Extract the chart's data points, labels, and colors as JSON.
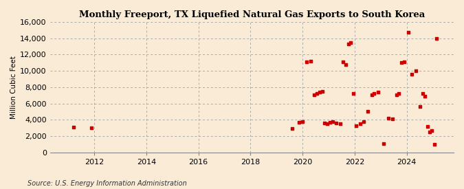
{
  "title": "Monthly Freeport, TX Liquefied Natural Gas Exports to South Korea",
  "ylabel": "Million Cubic Feet",
  "source": "Source: U.S. Energy Information Administration",
  "background_color": "#faebd7",
  "marker_color": "#cc0000",
  "ylim": [
    0,
    16000
  ],
  "yticks": [
    0,
    2000,
    4000,
    6000,
    8000,
    10000,
    12000,
    14000,
    16000
  ],
  "xlim_min": 2010.3,
  "xlim_max": 2025.8,
  "xticks": [
    2012,
    2014,
    2016,
    2018,
    2020,
    2022,
    2024
  ],
  "data_points": [
    [
      2011.2,
      3100
    ],
    [
      2011.9,
      3000
    ],
    [
      2019.6,
      2900
    ],
    [
      2019.85,
      3700
    ],
    [
      2020.0,
      3800
    ],
    [
      2020.15,
      11100
    ],
    [
      2020.3,
      11200
    ],
    [
      2020.45,
      7100
    ],
    [
      2020.55,
      7250
    ],
    [
      2020.65,
      7400
    ],
    [
      2020.75,
      7500
    ],
    [
      2020.85,
      3600
    ],
    [
      2020.95,
      3500
    ],
    [
      2021.05,
      3700
    ],
    [
      2021.15,
      3800
    ],
    [
      2021.3,
      3600
    ],
    [
      2021.45,
      3500
    ],
    [
      2021.55,
      11100
    ],
    [
      2021.65,
      10800
    ],
    [
      2021.75,
      13300
    ],
    [
      2021.85,
      13500
    ],
    [
      2021.95,
      7200
    ],
    [
      2022.05,
      3300
    ],
    [
      2022.2,
      3500
    ],
    [
      2022.35,
      3800
    ],
    [
      2022.5,
      5000
    ],
    [
      2022.65,
      7100
    ],
    [
      2022.75,
      7200
    ],
    [
      2022.9,
      7400
    ],
    [
      2023.1,
      1100
    ],
    [
      2023.3,
      4200
    ],
    [
      2023.45,
      4100
    ],
    [
      2023.6,
      7100
    ],
    [
      2023.7,
      7200
    ],
    [
      2023.8,
      11000
    ],
    [
      2023.9,
      11100
    ],
    [
      2024.05,
      14700
    ],
    [
      2024.2,
      9600
    ],
    [
      2024.35,
      10000
    ],
    [
      2024.5,
      5600
    ],
    [
      2024.6,
      7200
    ],
    [
      2024.7,
      6900
    ],
    [
      2024.8,
      3200
    ],
    [
      2024.87,
      2500
    ],
    [
      2024.95,
      2700
    ],
    [
      2025.05,
      1000
    ],
    [
      2025.15,
      14000
    ]
  ]
}
